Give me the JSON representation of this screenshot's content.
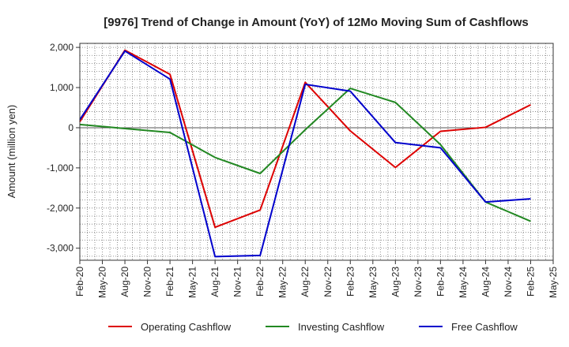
{
  "chart_data": {
    "type": "line",
    "title": "[9976]  Trend of Change in Amount (YoY) of 12Mo Moving Sum of Cashflows",
    "xlabel": "",
    "ylabel": "Amount (million yen)",
    "ylim": [
      -3300,
      2100
    ],
    "yticks": [
      -3000,
      -2000,
      -1000,
      0,
      1000,
      2000
    ],
    "ytick_labels": [
      "-3,000",
      "-2,000",
      "-1,000",
      "0",
      "1,000",
      "2,000"
    ],
    "x_labels": [
      "Feb-20",
      "May-20",
      "Aug-20",
      "Nov-20",
      "Feb-21",
      "May-21",
      "Aug-21",
      "Nov-21",
      "Feb-22",
      "May-22",
      "Aug-22",
      "Nov-22",
      "Feb-23",
      "May-23",
      "Aug-23",
      "Nov-23",
      "Feb-24",
      "May-24",
      "Aug-24",
      "Nov-24",
      "Feb-25",
      "May-25"
    ],
    "grid": true,
    "legend_position": "bottom",
    "series": [
      {
        "name": "Operating Cashflow",
        "color": "#dd0000",
        "points": [
          {
            "x": "Feb-20",
            "y": 150
          },
          {
            "x": "Aug-20",
            "y": 1930
          },
          {
            "x": "Feb-21",
            "y": 1330
          },
          {
            "x": "Aug-21",
            "y": -2480
          },
          {
            "x": "Feb-22",
            "y": -2050
          },
          {
            "x": "Aug-22",
            "y": 1130
          },
          {
            "x": "Feb-23",
            "y": -80
          },
          {
            "x": "Aug-23",
            "y": -990
          },
          {
            "x": "Feb-24",
            "y": -90
          },
          {
            "x": "Aug-24",
            "y": 10
          },
          {
            "x": "Feb-25",
            "y": 570
          }
        ]
      },
      {
        "name": "Investing Cashflow",
        "color": "#228822",
        "points": [
          {
            "x": "Feb-20",
            "y": 80
          },
          {
            "x": "Aug-20",
            "y": -20
          },
          {
            "x": "Feb-21",
            "y": -120
          },
          {
            "x": "Aug-21",
            "y": -740
          },
          {
            "x": "Feb-22",
            "y": -1140
          },
          {
            "x": "Aug-22",
            "y": -50
          },
          {
            "x": "Feb-23",
            "y": 980
          },
          {
            "x": "Aug-23",
            "y": 630
          },
          {
            "x": "Feb-24",
            "y": -420
          },
          {
            "x": "Aug-24",
            "y": -1850
          },
          {
            "x": "Feb-25",
            "y": -2330
          }
        ]
      },
      {
        "name": "Free Cashflow",
        "color": "#0000cc",
        "points": [
          {
            "x": "Feb-20",
            "y": 200
          },
          {
            "x": "Aug-20",
            "y": 1910
          },
          {
            "x": "Feb-21",
            "y": 1210
          },
          {
            "x": "Aug-21",
            "y": -3210
          },
          {
            "x": "Feb-22",
            "y": -3180
          },
          {
            "x": "Aug-22",
            "y": 1080
          },
          {
            "x": "Feb-23",
            "y": 910
          },
          {
            "x": "Aug-23",
            "y": -370
          },
          {
            "x": "Feb-24",
            "y": -500
          },
          {
            "x": "Aug-24",
            "y": -1850
          },
          {
            "x": "Feb-25",
            "y": -1770
          }
        ]
      }
    ]
  }
}
